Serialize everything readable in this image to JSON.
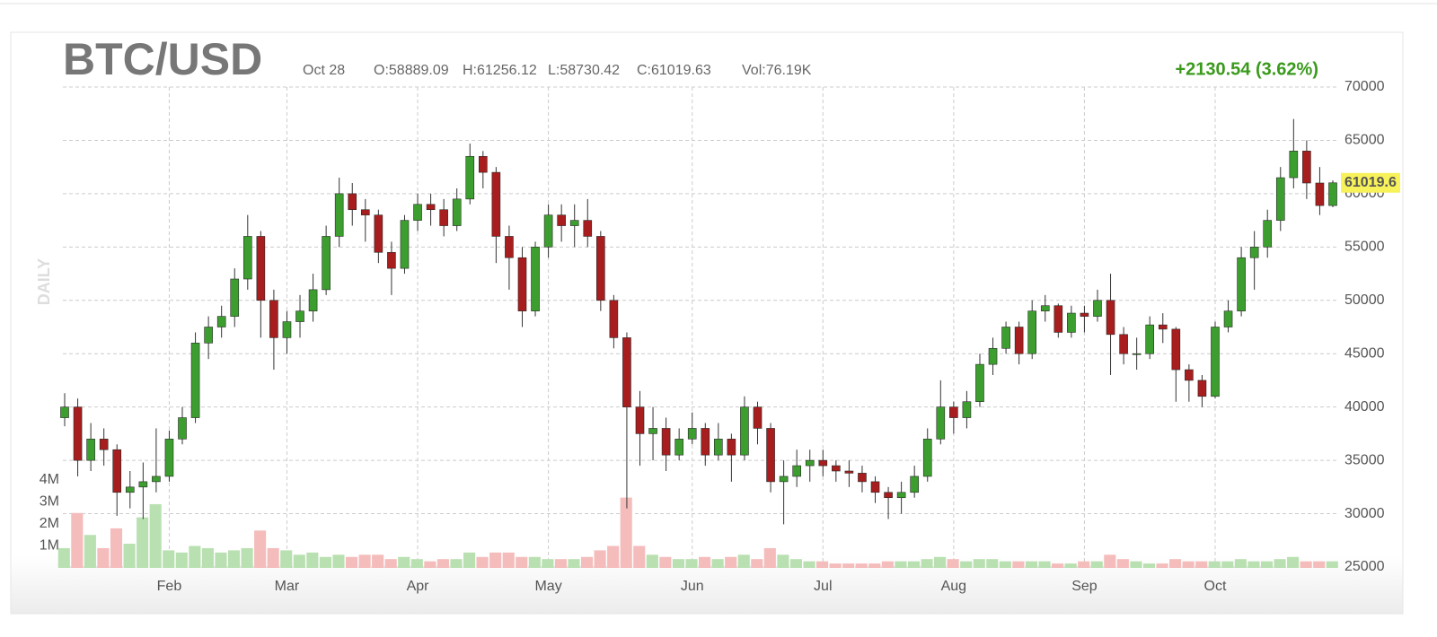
{
  "chart_data": {
    "type": "candlestick",
    "title": "BTC/USD",
    "interval": "DAILY",
    "date": "Oct 28",
    "open_text": "O:58889.09",
    "high_text": "H:61256.12",
    "low_text": "L:58730.42",
    "close_text": "C:61019.63",
    "volume_text": "Vol:76.19K",
    "change": "+2130.54 (3.62%)",
    "last_price_label": "61019.6",
    "categories": [
      null,
      null,
      null,
      null,
      null,
      null,
      null,
      null,
      "Feb",
      null,
      null,
      null,
      null,
      null,
      null,
      null,
      null,
      "Mar",
      null,
      null,
      null,
      null,
      null,
      null,
      null,
      null,
      null,
      "Apr",
      null,
      null,
      null,
      null,
      null,
      null,
      null,
      null,
      null,
      "May",
      null,
      null,
      null,
      null,
      null,
      null,
      null,
      null,
      null,
      null,
      "Jun",
      null,
      null,
      null,
      null,
      null,
      null,
      null,
      null,
      null,
      "Jul",
      null,
      null,
      null,
      null,
      null,
      null,
      null,
      null,
      null,
      "Aug",
      null,
      null,
      null,
      null,
      null,
      null,
      null,
      null,
      null,
      "Sep",
      null,
      null,
      null,
      null,
      null,
      null,
      null,
      null,
      null,
      "Oct",
      null,
      null,
      null,
      null,
      null,
      null,
      null,
      null,
      null
    ],
    "open": [
      39000,
      40000,
      35000,
      37000,
      36000,
      32000,
      32500,
      33000,
      33500,
      37000,
      39000,
      46000,
      47500,
      48500,
      52000,
      56000,
      50000,
      46500,
      48000,
      49000,
      51000,
      56000,
      60000,
      58500,
      58000,
      54500,
      53000,
      57500,
      59000,
      58500,
      57000,
      59500,
      63500,
      62000,
      56000,
      54000,
      49000,
      55000,
      58000,
      57000,
      57500,
      56000,
      50000,
      46500,
      40000,
      37500,
      38000,
      35500,
      37000,
      38000,
      35500,
      37000,
      35500,
      40000,
      38000,
      33000,
      33500,
      34500,
      35000,
      34500,
      34000,
      33800,
      33000,
      32000,
      31500,
      32000,
      33500,
      37000,
      40000,
      39000,
      40500,
      44000,
      45500,
      47500,
      45000,
      49000,
      49500,
      47000,
      48800,
      48500,
      50000,
      46800,
      45000,
      45000,
      47700,
      47300,
      43500,
      42500,
      41000,
      47500,
      49000,
      54000,
      55000,
      57500,
      61500,
      64000,
      61000,
      58889.09
    ],
    "high": [
      41300,
      40800,
      38500,
      38000,
      36500,
      34000,
      34800,
      38000,
      37800,
      40000,
      47000,
      48500,
      49500,
      53000,
      58000,
      56500,
      51000,
      49000,
      50500,
      52500,
      57000,
      61500,
      61000,
      59500,
      58500,
      55500,
      58000,
      60000,
      60000,
      59500,
      60500,
      64700,
      64000,
      62500,
      57000,
      55000,
      55500,
      59000,
      59000,
      59000,
      59500,
      56500,
      50500,
      47000,
      41500,
      40000,
      39000,
      38000,
      39500,
      38500,
      38500,
      37500,
      41000,
      40500,
      38500,
      35000,
      36000,
      36000,
      36000,
      35000,
      35000,
      34500,
      33500,
      32500,
      33000,
      34500,
      38000,
      42500,
      40500,
      41500,
      45000,
      46500,
      48000,
      48000,
      50000,
      50500,
      49700,
      49500,
      49500,
      51000,
      52500,
      47500,
      46500,
      48500,
      48800,
      47500,
      44000,
      43000,
      48000,
      50000,
      55000,
      56500,
      58500,
      62500,
      67000,
      65000,
      62500,
      61256.12
    ],
    "low": [
      38200,
      33500,
      34000,
      34500,
      29800,
      30500,
      29500,
      32000,
      33000,
      36500,
      38500,
      44500,
      46500,
      47500,
      51000,
      46500,
      43500,
      45000,
      46500,
      48000,
      50500,
      55000,
      57000,
      55500,
      53500,
      50500,
      52500,
      56500,
      57000,
      56000,
      56500,
      59000,
      60500,
      53500,
      51000,
      47500,
      48500,
      54000,
      55500,
      55000,
      55000,
      49000,
      45500,
      30500,
      34500,
      35000,
      34000,
      35000,
      36500,
      34500,
      35000,
      33000,
      35000,
      36500,
      32000,
      29000,
      32500,
      33000,
      33500,
      33000,
      32500,
      32000,
      31000,
      29500,
      30000,
      31500,
      33000,
      36500,
      37500,
      38000,
      40000,
      43000,
      45000,
      44000,
      44500,
      48000,
      46500,
      46500,
      47000,
      48000,
      43000,
      44000,
      43500,
      44500,
      46000,
      40500,
      40500,
      40000,
      40800,
      47000,
      48500,
      51000,
      54000,
      56500,
      60500,
      59500,
      58000,
      58730.42
    ],
    "close": [
      40000,
      35000,
      37000,
      36000,
      32000,
      32500,
      33000,
      33500,
      37000,
      39000,
      46000,
      47500,
      48500,
      52000,
      56000,
      50000,
      46500,
      48000,
      49000,
      51000,
      56000,
      60000,
      58500,
      58000,
      54500,
      53000,
      57500,
      59000,
      58500,
      57000,
      59500,
      63500,
      62000,
      56000,
      54000,
      49000,
      55000,
      58000,
      57000,
      57500,
      56000,
      50000,
      46500,
      40000,
      37500,
      38000,
      35500,
      37000,
      38000,
      35500,
      37000,
      35500,
      40000,
      38000,
      33000,
      33500,
      34500,
      35000,
      34500,
      34000,
      33800,
      33000,
      32000,
      31500,
      32000,
      33500,
      37000,
      40000,
      39000,
      40500,
      44000,
      45500,
      47500,
      45000,
      49000,
      49500,
      47000,
      48800,
      48500,
      50000,
      46800,
      45000,
      45000,
      47700,
      47300,
      43500,
      42500,
      41000,
      47500,
      49000,
      54000,
      55000,
      57500,
      61500,
      64000,
      61000,
      58889.09,
      61019.63
    ],
    "volume": [
      900000,
      2500000,
      1500000,
      900000,
      1800000,
      1100000,
      2300000,
      2900000,
      800000,
      700000,
      1000000,
      900000,
      700000,
      800000,
      900000,
      1700000,
      900000,
      800000,
      600000,
      700000,
      500000,
      600000,
      500000,
      600000,
      600000,
      400000,
      500000,
      400000,
      300000,
      400000,
      400000,
      700000,
      500000,
      700000,
      700000,
      500000,
      500000,
      400000,
      400000,
      400000,
      500000,
      800000,
      1000000,
      3200000,
      1000000,
      600000,
      500000,
      400000,
      400000,
      500000,
      400000,
      500000,
      600000,
      400000,
      900000,
      600000,
      400000,
      300000,
      300000,
      200000,
      200000,
      200000,
      200000,
      300000,
      300000,
      300000,
      400000,
      500000,
      400000,
      300000,
      400000,
      400000,
      300000,
      300000,
      300000,
      300000,
      200000,
      200000,
      300000,
      300000,
      600000,
      400000,
      300000,
      200000,
      200000,
      400000,
      300000,
      300000,
      300000,
      300000,
      400000,
      300000,
      300000,
      400000,
      500000,
      300000,
      300000,
      300000
    ],
    "ylim": [
      25000,
      70000
    ],
    "yticks": [
      25000,
      30000,
      35000,
      40000,
      45000,
      50000,
      55000,
      60000,
      65000,
      70000
    ],
    "y2lim": [
      0,
      4000000
    ],
    "y2ticks": [
      {
        "value": 1000000,
        "label": "1M"
      },
      {
        "value": 2000000,
        "label": "2M"
      },
      {
        "value": 3000000,
        "label": "3M"
      },
      {
        "value": 4000000,
        "label": "4M"
      }
    ],
    "grid": true,
    "up_color": "#3c9e2e",
    "down_color": "#a81d1d",
    "volume_up_color": "#b9e0b1",
    "volume_down_color": "#f5bcbc",
    "change_color": "#3a9a1c"
  }
}
